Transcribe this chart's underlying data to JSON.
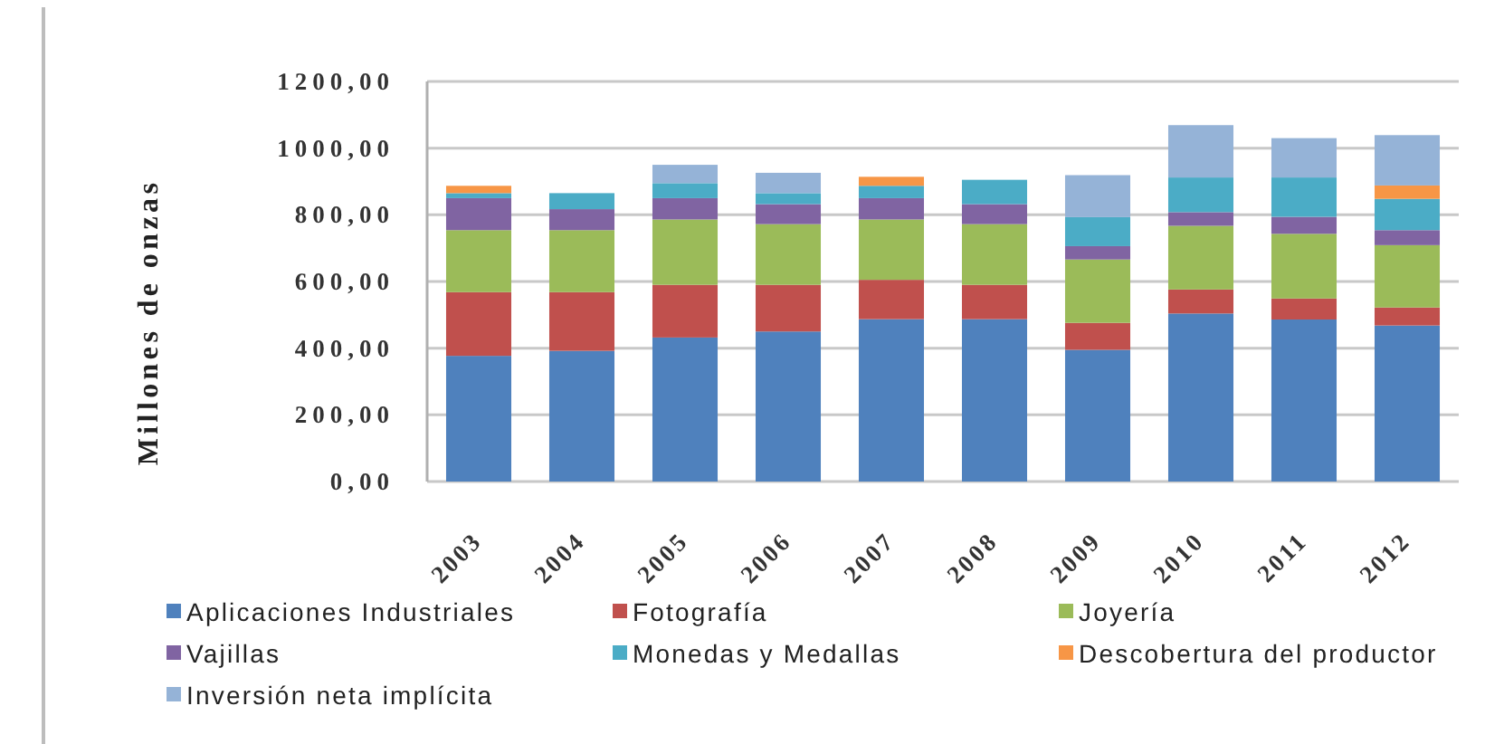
{
  "chart_data": {
    "type": "bar",
    "stacked": true,
    "ylabel": "Millones de onzas",
    "categories": [
      "2003",
      "2004",
      "2005",
      "2006",
      "2007",
      "2008",
      "2009",
      "2010",
      "2011",
      "2012"
    ],
    "series": [
      {
        "name": "Aplicaciones Industriales",
        "color": "#4f81bd",
        "values": [
          377,
          392,
          432,
          450,
          487,
          487,
          395,
          504,
          486,
          468
        ]
      },
      {
        "name": "Fotografía",
        "color": "#c0504d",
        "values": [
          191,
          176,
          158,
          140,
          118,
          103,
          81,
          72,
          63,
          54
        ]
      },
      {
        "name": "Joyería",
        "color": "#9bbb59",
        "values": [
          186,
          186,
          196,
          182,
          181,
          182,
          190,
          191,
          194,
          187
        ]
      },
      {
        "name": "Vajillas",
        "color": "#8064a2",
        "values": [
          96,
          63,
          64,
          60,
          64,
          60,
          40,
          41,
          51,
          45
        ]
      },
      {
        "name": "Monedas y Medallas",
        "color": "#4bacc6",
        "values": [
          15,
          48,
          45,
          33,
          37,
          73,
          87,
          104,
          118,
          94
        ]
      },
      {
        "name": "Descobertura del productor",
        "color": "#f79646",
        "values": [
          22,
          null,
          null,
          null,
          27,
          null,
          null,
          null,
          null,
          40
        ]
      },
      {
        "name": "Inversión neta implícita",
        "color": "#95b3d7",
        "values": [
          null,
          null,
          55,
          61,
          null,
          null,
          126,
          157,
          118,
          151
        ]
      }
    ],
    "ylim": [
      0,
      1200
    ],
    "yticks": [
      {
        "value": 0,
        "label": "0,00"
      },
      {
        "value": 200,
        "label": "200,00"
      },
      {
        "value": 400,
        "label": "400,00"
      },
      {
        "value": 600,
        "label": "600,00"
      },
      {
        "value": 800,
        "label": "800,00"
      },
      {
        "value": 1000,
        "label": "1000,00"
      },
      {
        "value": 1200,
        "label": "1200,00"
      }
    ],
    "grid": "y",
    "legend": "bottom"
  }
}
